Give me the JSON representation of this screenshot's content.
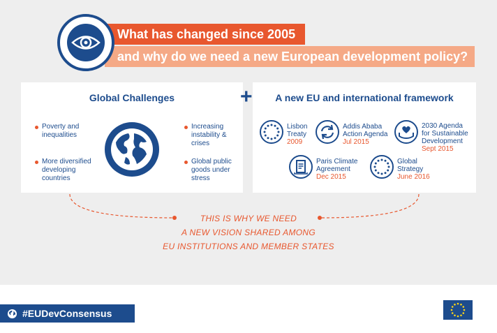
{
  "header": {
    "title_line1": "What has changed since 2005",
    "title_line2": "and why do we need a new European development policy?",
    "icon": "eye-icon"
  },
  "global_challenges": {
    "title": "Global Challenges",
    "items": [
      "Poverty and inequalities",
      "More diversified developing countries",
      "Increasing instability & crises",
      "Global public goods under stress"
    ],
    "icon": "globe-icon"
  },
  "framework": {
    "title": "A new EU and international framework",
    "items": [
      {
        "line1": "Lisbon",
        "line2": "Treaty",
        "line3": "",
        "date": "2009",
        "icon": "eu-stars-icon"
      },
      {
        "line1": "Addis Ababa",
        "line2": "Action Agenda",
        "line3": "",
        "date": "Jul 2015",
        "icon": "cycle-arrows-icon"
      },
      {
        "line1": "2030 Agenda",
        "line2": "for Sustainable",
        "line3": "Development",
        "date": "Sept 2015",
        "icon": "heart-hands-icon"
      },
      {
        "line1": "Paris Climate",
        "line2": "Agreement",
        "line3": "",
        "date": "Dec 2015",
        "icon": "document-icon"
      },
      {
        "line1": "Global",
        "line2": "Strategy",
        "line3": "",
        "date": "June 2016",
        "icon": "eu-stars-icon"
      }
    ]
  },
  "conclusion": {
    "line1": "THIS IS WHY WE NEED",
    "line2": "A NEW VISION SHARED AMONG",
    "line3": "EU INSTITUTIONS AND MEMBER STATES"
  },
  "footer": {
    "hashtag": "#EUDevConsensus"
  },
  "colors": {
    "navy": "#1d4c8d",
    "orange": "#e8572e",
    "light_orange": "#f5a986",
    "background": "#eeeeee"
  }
}
